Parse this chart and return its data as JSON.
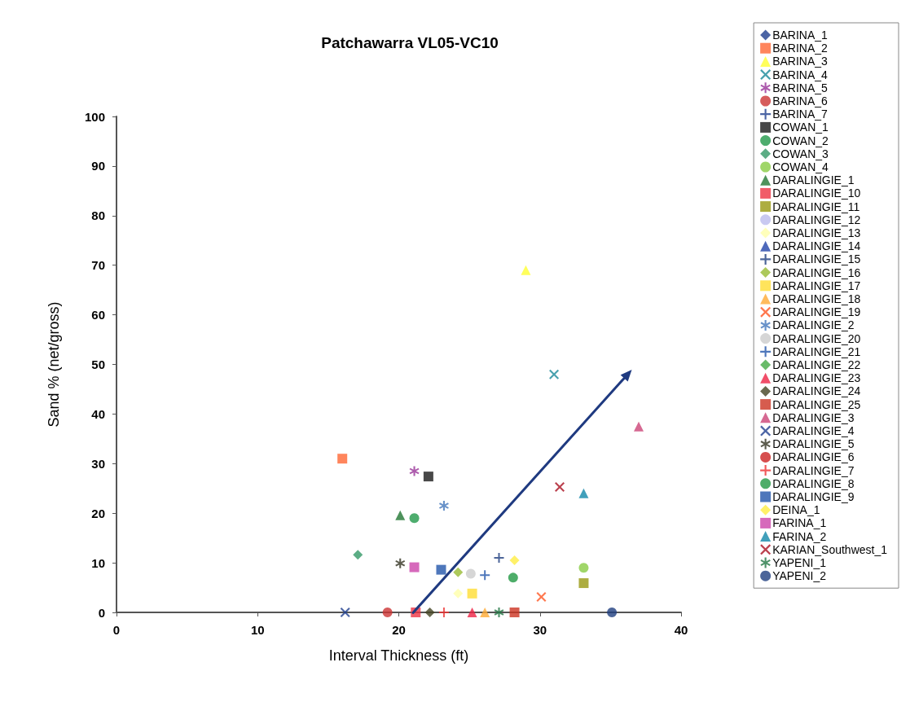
{
  "chart_data": {
    "type": "scatter",
    "title": "Patchawarra VL05-VC10",
    "xlabel": "Interval Thickness (ft)",
    "ylabel": "Sand % (net/gross)",
    "xlim": [
      0,
      40
    ],
    "xticks": [
      0,
      10,
      20,
      30,
      40
    ],
    "ylim": [
      0,
      100
    ],
    "yticks": [
      0,
      10,
      20,
      30,
      40,
      50,
      60,
      70,
      80,
      90,
      100
    ],
    "grid": false,
    "legend": "right",
    "series": [
      {
        "name": "BARINA_1",
        "color": "#1f3f8f",
        "marker": "diamond"
      },
      {
        "name": "BARINA_2",
        "color": "#ff6633",
        "marker": "square",
        "x": [
          16
        ],
        "values": [
          31
        ]
      },
      {
        "name": "BARINA_3",
        "color": "#ffff33",
        "marker": "triangle",
        "x": [
          29
        ],
        "values": [
          69
        ]
      },
      {
        "name": "BARINA_4",
        "color": "#1a8a9a",
        "marker": "x",
        "x": [
          31
        ],
        "values": [
          48
        ]
      },
      {
        "name": "BARINA_5",
        "color": "#993399",
        "marker": "star",
        "x": [
          21.1
        ],
        "values": [
          28.5
        ]
      },
      {
        "name": "BARINA_6",
        "color": "#cc3333",
        "marker": "circle",
        "x": [
          19.2
        ],
        "values": [
          0
        ]
      },
      {
        "name": "BARINA_7",
        "color": "#1f3f8f",
        "marker": "cross"
      },
      {
        "name": "COWAN_1",
        "color": "#1a1a1a",
        "marker": "square",
        "x": [
          22.1
        ],
        "values": [
          27.4
        ]
      },
      {
        "name": "COWAN_2",
        "color": "#22994a",
        "marker": "circle",
        "x": [
          21.1
        ],
        "values": [
          19
        ]
      },
      {
        "name": "COWAN_3",
        "color": "#339966",
        "marker": "diamond",
        "x": [
          17.1
        ],
        "values": [
          11.6
        ]
      },
      {
        "name": "COWAN_4",
        "color": "#88cc44",
        "marker": "circle",
        "x": [
          33.1
        ],
        "values": [
          9
        ]
      },
      {
        "name": "DARALINGIE_1",
        "color": "#227733",
        "marker": "triangle",
        "x": [
          20.1
        ],
        "values": [
          19.6
        ]
      },
      {
        "name": "DARALINGIE_10",
        "color": "#ee3344",
        "marker": "square",
        "x": [
          21.2
        ],
        "values": [
          0
        ]
      },
      {
        "name": "DARALINGIE_11",
        "color": "#999911",
        "marker": "square",
        "x": [
          33.1
        ],
        "values": [
          5.9
        ]
      },
      {
        "name": "DARALINGIE_12",
        "color": "#bbbbee",
        "marker": "circle"
      },
      {
        "name": "DARALINGIE_13",
        "color": "#ffffaa",
        "marker": "diamond",
        "x": [
          24.2
        ],
        "values": [
          3.8
        ]
      },
      {
        "name": "DARALINGIE_14",
        "color": "#2244aa",
        "marker": "triangle"
      },
      {
        "name": "DARALINGIE_15",
        "color": "#1f3f7f",
        "marker": "cross",
        "x": [
          27.1
        ],
        "values": [
          11
        ]
      },
      {
        "name": "DARALINGIE_16",
        "color": "#99bb33",
        "marker": "diamond",
        "x": [
          24.2
        ],
        "values": [
          8.1
        ]
      },
      {
        "name": "DARALINGIE_17",
        "color": "#ffdd33",
        "marker": "square",
        "x": [
          25.2
        ],
        "values": [
          3.8
        ]
      },
      {
        "name": "DARALINGIE_18",
        "color": "#ffaa33",
        "marker": "triangle",
        "x": [
          26.1
        ],
        "values": [
          0
        ]
      },
      {
        "name": "DARALINGIE_19",
        "color": "#ff5522",
        "marker": "x",
        "x": [
          30.1
        ],
        "values": [
          3.1
        ]
      },
      {
        "name": "DARALINGIE_2",
        "color": "#4477bb",
        "marker": "star",
        "x": [
          23.2
        ],
        "values": [
          21.5
        ]
      },
      {
        "name": "DARALINGIE_20",
        "color": "#cccccc",
        "marker": "circle",
        "x": [
          25.1
        ],
        "values": [
          7.8
        ]
      },
      {
        "name": "DARALINGIE_21",
        "color": "#2255aa",
        "marker": "cross",
        "x": [
          26.1
        ],
        "values": [
          7.5
        ]
      },
      {
        "name": "DARALINGIE_22",
        "color": "#44aa44",
        "marker": "diamond"
      },
      {
        "name": "DARALINGIE_23",
        "color": "#ee2244",
        "marker": "triangle",
        "x": [
          25.2
        ],
        "values": [
          0
        ]
      },
      {
        "name": "DARALINGIE_24",
        "color": "#444422",
        "marker": "diamond",
        "x": [
          22.2
        ],
        "values": [
          0
        ]
      },
      {
        "name": "DARALINGIE_25",
        "color": "#cc3322",
        "marker": "square",
        "x": [
          28.2
        ],
        "values": [
          0
        ]
      },
      {
        "name": "DARALINGIE_3",
        "color": "#cc4477",
        "marker": "triangle",
        "x": [
          37
        ],
        "values": [
          37.5
        ]
      },
      {
        "name": "DARALINGIE_4",
        "color": "#1f3f8f",
        "marker": "x",
        "x": [
          16.2
        ],
        "values": [
          0
        ]
      },
      {
        "name": "DARALINGIE_5",
        "color": "#333322",
        "marker": "star",
        "x": [
          20.1
        ],
        "values": [
          9.9
        ]
      },
      {
        "name": "DARALINGIE_6",
        "color": "#cc2222",
        "marker": "circle"
      },
      {
        "name": "DARALINGIE_7",
        "color": "#ee3333",
        "marker": "cross",
        "x": [
          23.2
        ],
        "values": [
          0
        ]
      },
      {
        "name": "DARALINGIE_8",
        "color": "#229944",
        "marker": "circle",
        "x": [
          28.1
        ],
        "values": [
          7
        ]
      },
      {
        "name": "DARALINGIE_9",
        "color": "#2255aa",
        "marker": "square",
        "x": [
          23
        ],
        "values": [
          8.6
        ]
      },
      {
        "name": "DEINA_1",
        "color": "#ffee44",
        "marker": "diamond",
        "x": [
          28.2
        ],
        "values": [
          10.5
        ]
      },
      {
        "name": "FARINA_1",
        "color": "#cc44aa",
        "marker": "square",
        "x": [
          21.1
        ],
        "values": [
          9.1
        ]
      },
      {
        "name": "FARINA_2",
        "color": "#1188aa",
        "marker": "triangle",
        "x": [
          33.1
        ],
        "values": [
          24
        ]
      },
      {
        "name": "KARIAN_Southwest_1",
        "color": "#aa1122",
        "marker": "x",
        "x": [
          31.4
        ],
        "values": [
          25.3
        ]
      },
      {
        "name": "YAPENI_1",
        "color": "#227744",
        "marker": "star",
        "x": [
          27.1
        ],
        "values": [
          0
        ]
      },
      {
        "name": "YAPENI_2",
        "color": "#1f3f7f",
        "marker": "circle",
        "x": [
          35.1
        ],
        "values": [
          0
        ]
      }
    ]
  }
}
